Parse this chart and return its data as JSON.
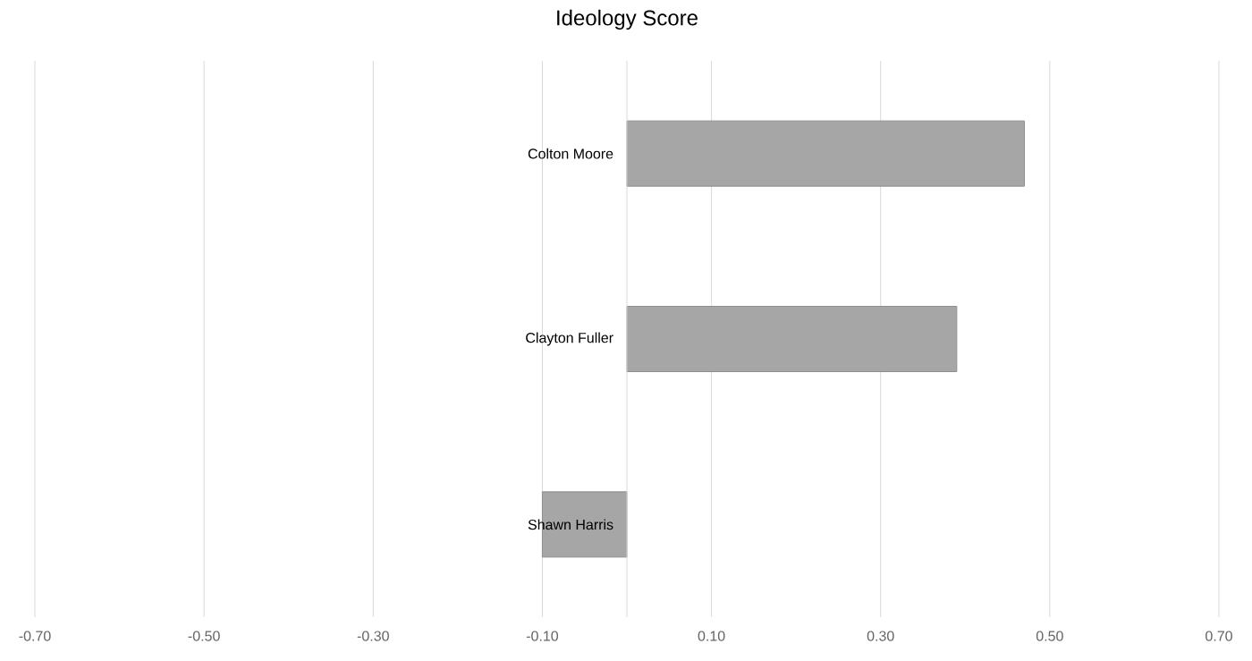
{
  "chart_data": {
    "type": "bar",
    "orientation": "horizontal",
    "title": "Ideology Score",
    "categories": [
      "Colton Moore",
      "Clayton Fuller",
      "Shawn Harris"
    ],
    "values": [
      0.47,
      0.39,
      -0.1
    ],
    "color": "#a6a6a6",
    "xlim": [
      -0.7,
      0.7
    ],
    "xticks": [
      {
        "value": -0.7,
        "label": "-0.70"
      },
      {
        "value": -0.5,
        "label": "-0.50"
      },
      {
        "value": -0.3,
        "label": "-0.30"
      },
      {
        "value": -0.1,
        "label": "-0.10"
      },
      {
        "value": 0.1,
        "label": "0.10"
      },
      {
        "value": 0.3,
        "label": "0.30"
      },
      {
        "value": 0.5,
        "label": "0.50"
      },
      {
        "value": 0.7,
        "label": "0.70"
      }
    ],
    "grid": "x"
  }
}
